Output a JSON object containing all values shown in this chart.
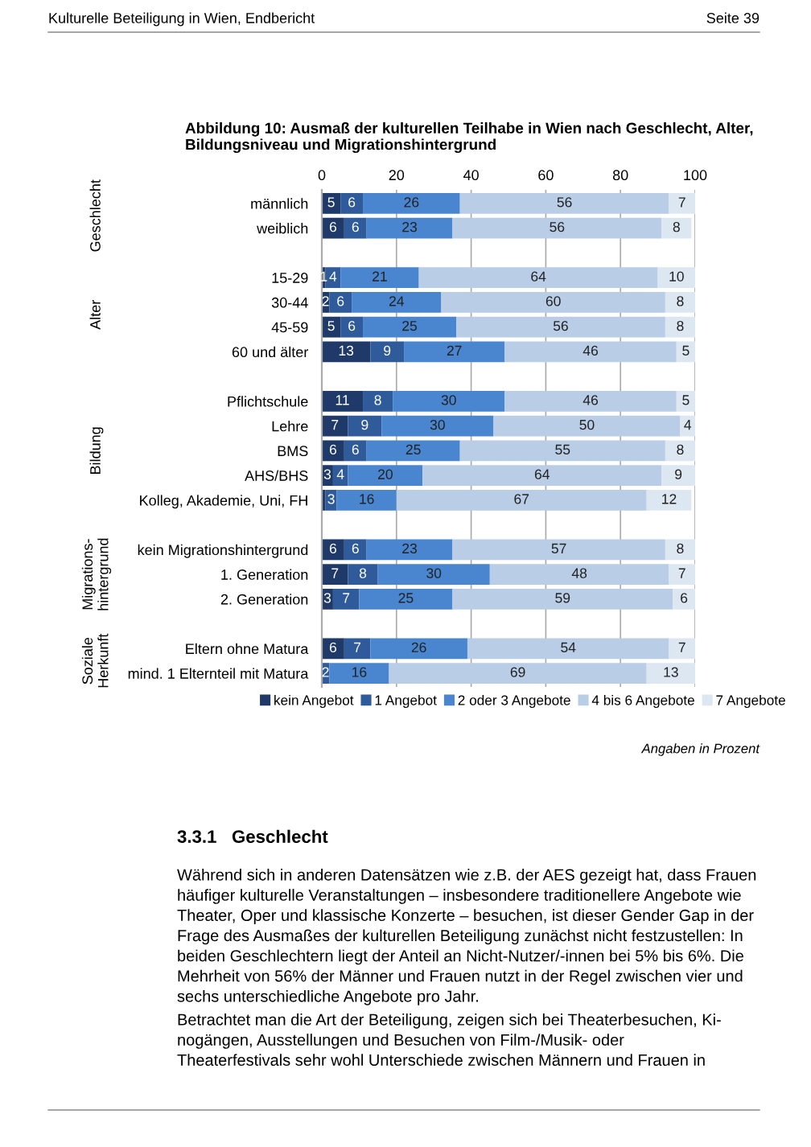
{
  "chart_data": {
    "type": "bar",
    "orientation": "horizontal",
    "stacked": true,
    "title": "Abbildung 10: Ausmaß der kulturellen Teilhabe in Wien nach Geschlecht, Alter, Bildungsniveau und Migrationshintergrund",
    "categories": [
      "männlich",
      "weiblich",
      null,
      "15-29",
      "30-44",
      "45-59",
      "60 und älter",
      null,
      "Pflichtschule",
      "Lehre",
      "BMS",
      "AHS/BHS",
      "Kolleg, Akademie, Uni, FH",
      null,
      "kein Migrationshintergrund",
      "1. Generation",
      "2. Generation",
      null,
      "Eltern ohne Matura",
      "mind. 1 Elternteil mit Matura"
    ],
    "series": [
      {
        "name": "kein Angebot",
        "color": "#1f3a68",
        "values": [
          5,
          6,
          null,
          1,
          2,
          5,
          13,
          null,
          11,
          7,
          6,
          3,
          1,
          null,
          6,
          7,
          3,
          null,
          6,
          0
        ],
        "value_labels": [
          "5",
          "6",
          null,
          "1",
          "2",
          "5",
          "13",
          null,
          "11",
          "7",
          "6",
          "3",
          null,
          null,
          "6",
          "7",
          "3",
          null,
          "6",
          null
        ]
      },
      {
        "name": "1 Angebot",
        "color": "#2f5b9a",
        "values": [
          6,
          6,
          null,
          4,
          6,
          6,
          9,
          null,
          8,
          9,
          6,
          4,
          3,
          null,
          6,
          8,
          7,
          null,
          7,
          2
        ],
        "value_labels": [
          "6",
          "6",
          null,
          "4",
          "6",
          "6",
          "9",
          null,
          "8",
          "9",
          "6",
          "4",
          "3",
          null,
          "6",
          "8",
          "7",
          null,
          "7",
          "2"
        ]
      },
      {
        "name": "2 oder 3 Angebote",
        "color": "#4a86cf",
        "values": [
          26,
          23,
          null,
          21,
          24,
          25,
          27,
          null,
          30,
          30,
          25,
          20,
          16,
          null,
          23,
          30,
          25,
          null,
          26,
          16
        ],
        "value_labels": [
          "26",
          "23",
          null,
          "21",
          "24",
          "25",
          "27",
          null,
          "30",
          "30",
          "25",
          "20",
          "16",
          null,
          "23",
          "30",
          "25",
          null,
          "26",
          "16"
        ]
      },
      {
        "name": "4 bis 6 Angebote",
        "color": "#b9cde6",
        "values": [
          56,
          56,
          null,
          64,
          60,
          56,
          46,
          null,
          46,
          50,
          55,
          64,
          67,
          null,
          57,
          48,
          59,
          null,
          54,
          69
        ],
        "value_labels": [
          "56",
          "56",
          null,
          "64",
          "60",
          "56",
          "46",
          null,
          "46",
          "50",
          "55",
          "64",
          "67",
          null,
          "57",
          "48",
          "59",
          null,
          "54",
          "69"
        ]
      },
      {
        "name": "7 Angebote",
        "color": "#dde7f2",
        "values": [
          7,
          8,
          null,
          10,
          8,
          8,
          5,
          null,
          5,
          4,
          8,
          9,
          12,
          null,
          8,
          7,
          6,
          null,
          7,
          13
        ],
        "value_labels": [
          "7",
          "8",
          null,
          "10",
          "8",
          "8",
          "5",
          null,
          "5",
          "4",
          "8",
          "9",
          "12",
          null,
          "8",
          "7",
          "6",
          null,
          "7",
          "13"
        ]
      }
    ],
    "xlim": [
      0,
      100
    ],
    "xticks": [
      0,
      20,
      40,
      60,
      80,
      100
    ],
    "grid": "x",
    "legend": "bottom",
    "annotations": [
      "Kulturelle Beteiligung in Wien, Endbericht",
      "Seite 39",
      "Geschlecht",
      "Alter",
      "Bildung",
      "Migrations-\nhintergrund",
      "Soziale\nHerkunft",
      "Angaben in Prozent",
      "3.3.1   Geschlecht",
      "Während sich in anderen Datensätzen wie z.B. der AES gezeigt hat, dass Frauen\nhäufiger kulturelle Veranstaltungen – insbesondere traditionellere Angebote wie\nTheater, Oper und klassische Konzerte – besuchen, ist dieser Gender Gap in der\nFrage des Ausmaßes der kulturellen Beteiligung zunächst nicht festzustellen: In\nbeiden Geschlechtern liegt der Anteil an Nicht-Nutzer/-innen bei 5% bis 6%. Die\nMehrheit von 56% der Männer und Frauen nutzt in der Regel zwischen vier und\nsechs unterschiedliche Angebote pro Jahr.",
      "Betrachtet man die Art der Beteiligung, zeigen sich bei Theaterbesuchen, Ki-\nnogängen, Ausstellungen und Besuchen von Film-/Musik- oder\nTheaterfestivals sehr wohl Unterschiede zwischen Männern und Frauen in"
    ]
  }
}
